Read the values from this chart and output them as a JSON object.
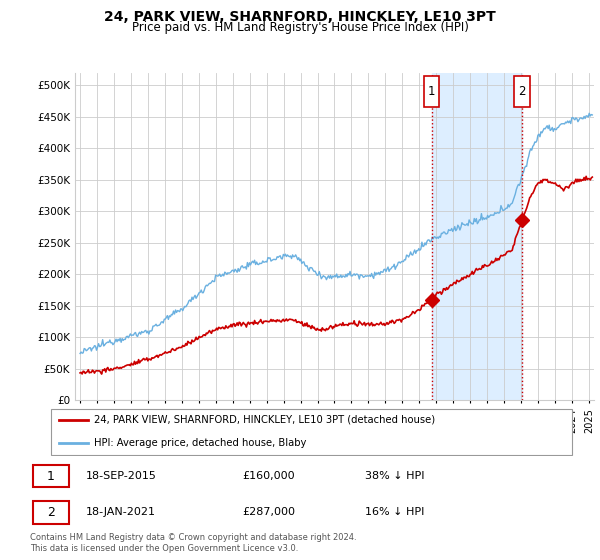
{
  "title": "24, PARK VIEW, SHARNFORD, HINCKLEY, LE10 3PT",
  "subtitle": "Price paid vs. HM Land Registry's House Price Index (HPI)",
  "yticks": [
    0,
    50000,
    100000,
    150000,
    200000,
    250000,
    300000,
    350000,
    400000,
    450000,
    500000
  ],
  "xlim_start": 1994.7,
  "xlim_end": 2025.3,
  "ylim": [
    0,
    520000
  ],
  "red_color": "#cc0000",
  "blue_color": "#6ab0e0",
  "marker1_date_x": 2015.72,
  "marker1_y": 160000,
  "marker2_date_x": 2021.05,
  "marker2_y": 287000,
  "legend_label_red": "24, PARK VIEW, SHARNFORD, HINCKLEY, LE10 3PT (detached house)",
  "legend_label_blue": "HPI: Average price, detached house, Blaby",
  "table_rows": [
    {
      "num": "1",
      "date": "18-SEP-2015",
      "price": "£160,000",
      "change": "38% ↓ HPI"
    },
    {
      "num": "2",
      "date": "18-JAN-2021",
      "price": "£287,000",
      "change": "16% ↓ HPI"
    }
  ],
  "footnote": "Contains HM Land Registry data © Crown copyright and database right 2024.\nThis data is licensed under the Open Government Licence v3.0.",
  "background_color": "#ffffff",
  "grid_color": "#cccccc",
  "shading_color": "#ddeeff"
}
